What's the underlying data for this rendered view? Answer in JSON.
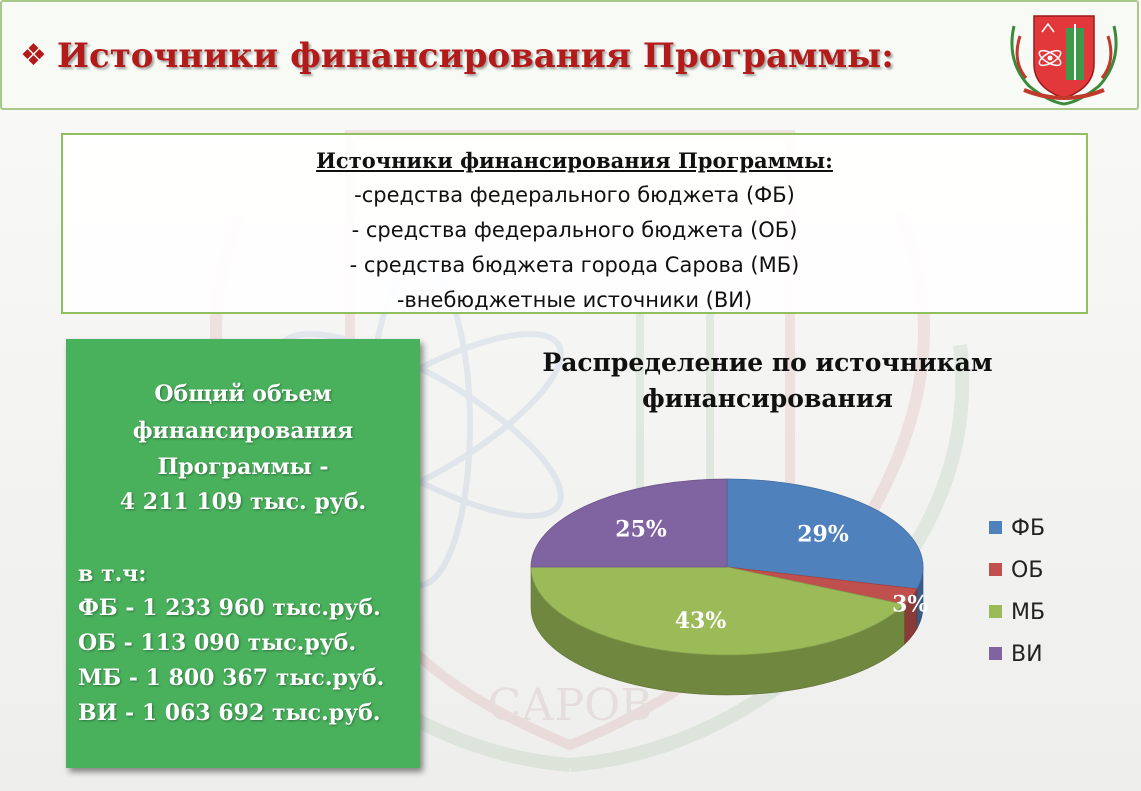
{
  "header": {
    "title": "Источники финансирования Программы:",
    "bullet": "❖"
  },
  "info": {
    "heading": "Источники финансирования Программы:",
    "lines": [
      "-средства федерального бюджета (ФБ)",
      "- средства федерального бюджета (ОБ)",
      "- средства бюджета города Сарова (МБ)",
      "-внебюджетные источники (ВИ)"
    ]
  },
  "summary": {
    "title_lines": [
      "Общий объем",
      "финансирования",
      "Программы -",
      "4 211 109  тыс. руб."
    ],
    "incl_label": "в т.ч:",
    "items": [
      "ФБ  - 1 233 960 тыс.руб.",
      "ОБ  - 113 090 тыс.руб.",
      "МБ - 1 800 367 тыс.руб.",
      "ВИ  - 1 063 692 тыс.руб."
    ]
  },
  "watermark_text": "САРОВ",
  "colors": {
    "accent_red": "#b31b1b",
    "box_green": "#49b05c",
    "border_green": "#8fbf5e"
  },
  "chart_data": {
    "type": "pie",
    "title": "Распределение по источникам финансирования",
    "title_lines": [
      "Распределение по источникам",
      "финансирования"
    ],
    "slices": [
      {
        "name": "ФБ",
        "value": 29,
        "label": "29%",
        "color": "#4f81bd"
      },
      {
        "name": "ОБ",
        "value": 3,
        "label": "3%",
        "color": "#c0504d"
      },
      {
        "name": "МБ",
        "value": 43,
        "label": "43%",
        "color": "#9bbb59"
      },
      {
        "name": "ВИ",
        "value": 25,
        "label": "25%",
        "color": "#8064a2"
      }
    ],
    "legend_position": "right",
    "style": "3d"
  }
}
